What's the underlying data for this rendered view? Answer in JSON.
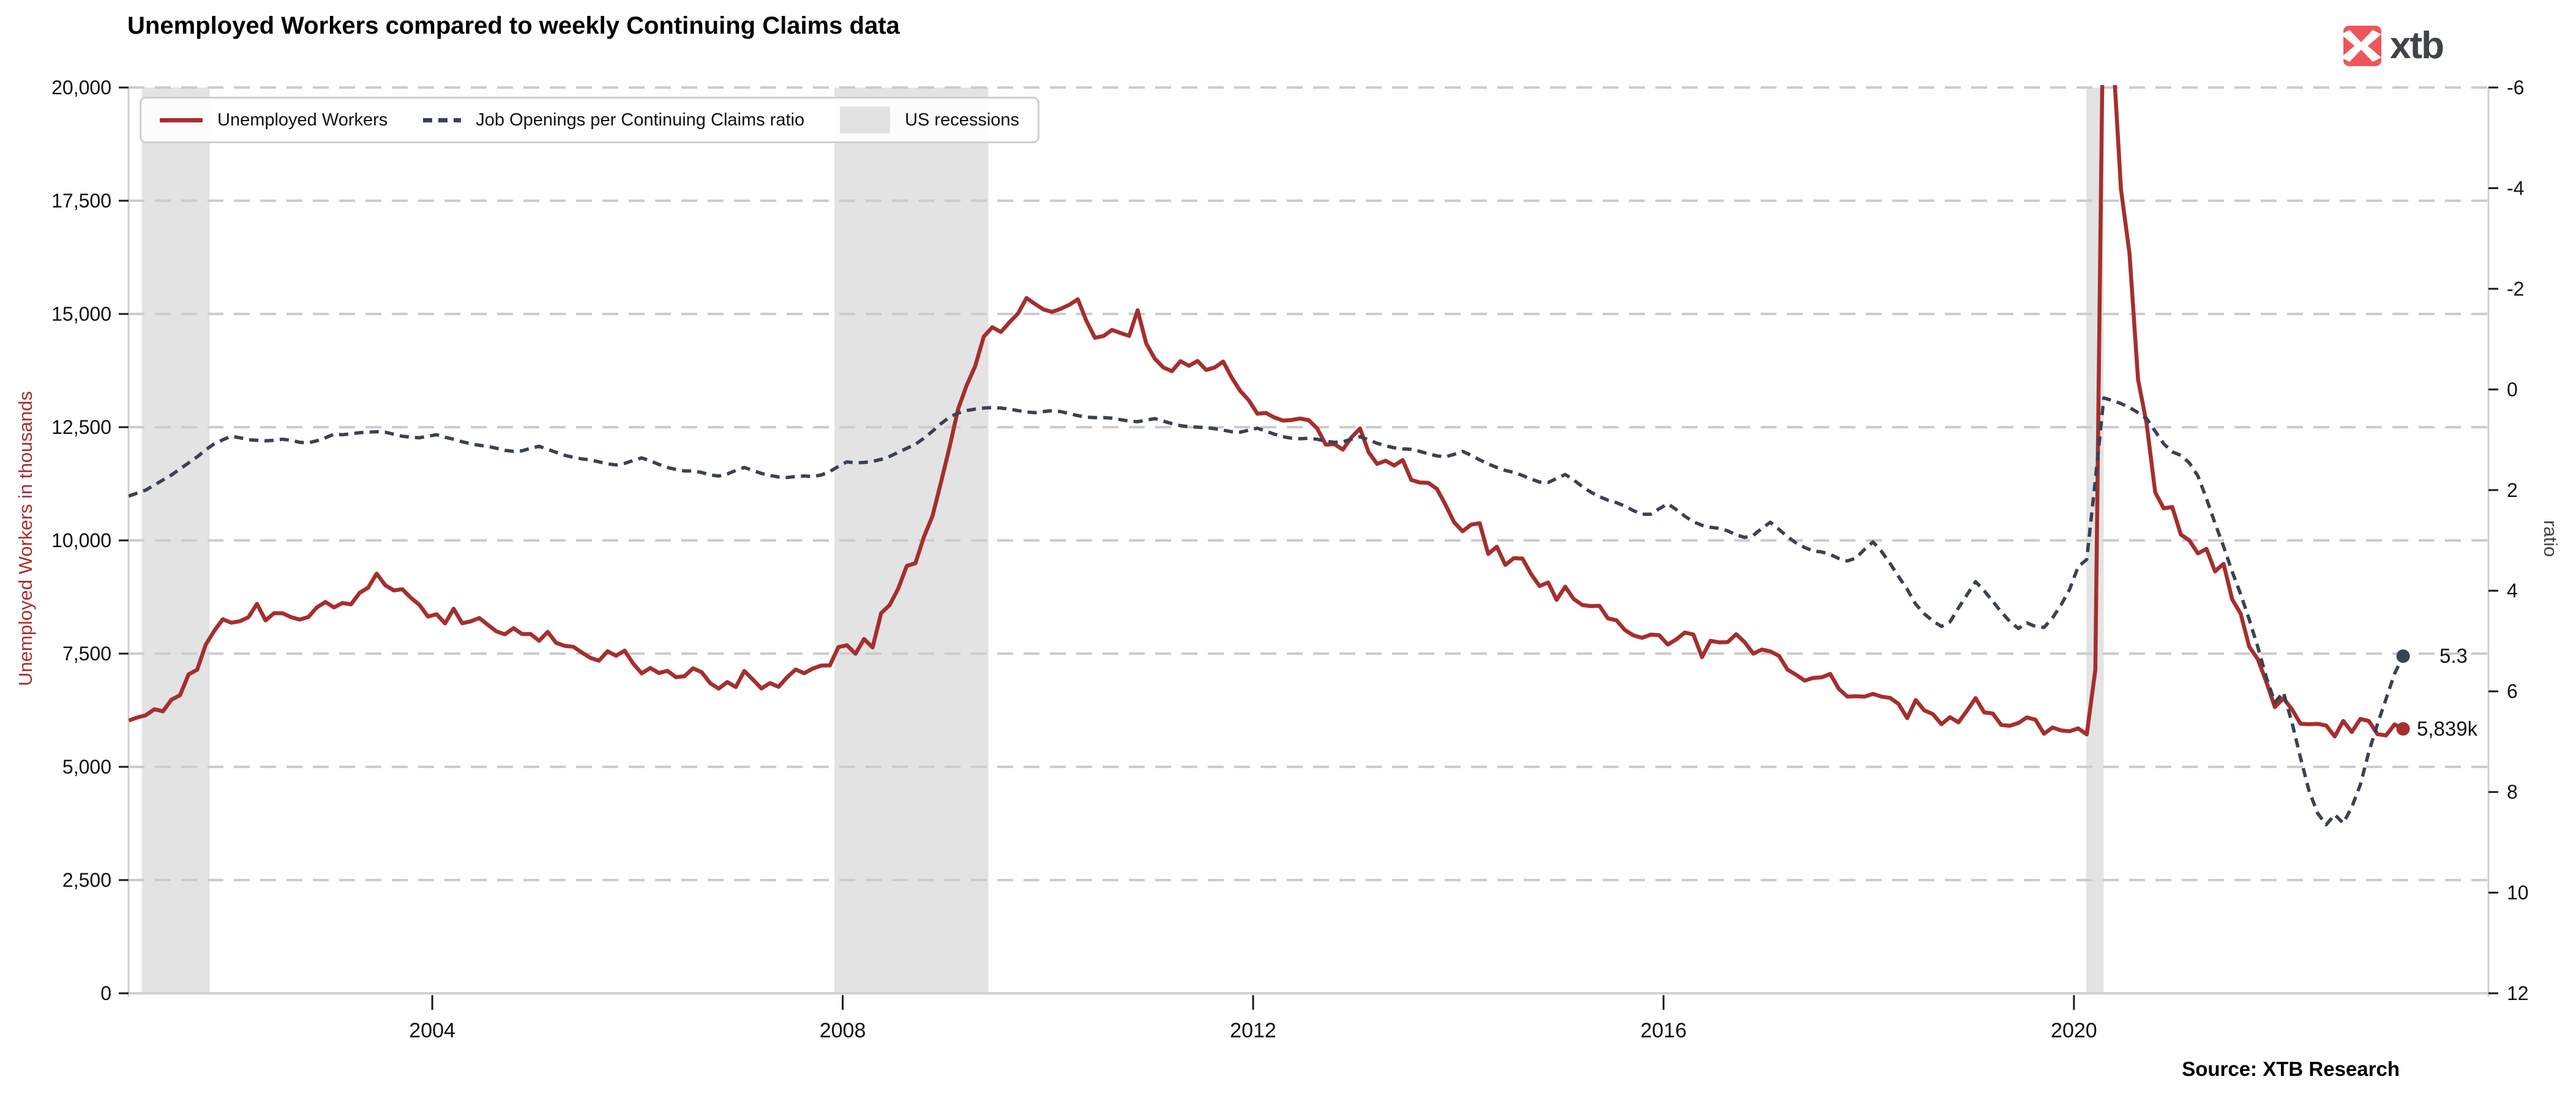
{
  "title": "Unemployed Workers compared to weekly Continuing Claims data",
  "source": "Source: XTB Research",
  "branding": {
    "logo_text": "xtb",
    "logo_square_color": "#F0555A",
    "logo_text_color": "#3E434C"
  },
  "annotations": {
    "ratio_end": "5.3",
    "unemployed_end": "5,839k"
  },
  "legend": {
    "position": "top-left",
    "items": [
      {
        "label": "Unemployed Workers",
        "type": "solid-line",
        "color": "#A42F2E"
      },
      {
        "label": "Job Openings per Continuing Claims ratio",
        "type": "dashed-line",
        "color": "#3A4154"
      },
      {
        "label": "US recessions",
        "type": "filled-box",
        "color": "#E2E2E2"
      }
    ]
  },
  "colors": {
    "unemployed_line": "#A42F2E",
    "ratio_line": "#3A4154",
    "recession_band": "#E3E3E3",
    "gridline": "#CCCCCC",
    "spine": "#D0D0D0",
    "tick": "#1A1A1A",
    "tick_label": "#111111"
  },
  "chart_data": {
    "type": "line",
    "title": "Unemployed Workers compared to weekly Continuing Claims data",
    "grid": "horizontal-dashed",
    "legend_position": "top-left",
    "x_axis": {
      "range": [
        2001.04,
        2024.04
      ],
      "ticks": [
        2004,
        2008,
        2012,
        2016,
        2020
      ]
    },
    "left_axis": {
      "label": "Unemployed Workers in thousands",
      "range": [
        0,
        20000
      ],
      "ticks": [
        0,
        2500,
        5000,
        7500,
        10000,
        12500,
        15000,
        17500,
        20000
      ]
    },
    "right_axis": {
      "label": "ratio",
      "range": [
        -6,
        12
      ],
      "inverted": true,
      "ticks": [
        -6,
        -4,
        -2,
        0,
        2,
        4,
        6,
        8,
        10,
        12
      ]
    },
    "recessions": [
      [
        2001.17,
        2001.83
      ],
      [
        2007.92,
        2009.42
      ],
      [
        2020.12,
        2020.29
      ]
    ],
    "end_labels": {
      "unemployed": 5839,
      "ratio": 5.3
    },
    "series": [
      {
        "name": "Unemployed Workers",
        "axis": "left",
        "style": "solid",
        "color": "#A42F2E",
        "start_year": 2001,
        "freq": "monthly",
        "values": [
          6023,
          6089,
          6141,
          6271,
          6226,
          6484,
          6583,
          7042,
          7142,
          7694,
          8003,
          8258,
          8182,
          8215,
          8304,
          8599,
          8234,
          8393,
          8390,
          8304,
          8251,
          8307,
          8520,
          8640,
          8520,
          8618,
          8588,
          8842,
          8957,
          9266,
          9011,
          8896,
          8921,
          8732,
          8576,
          8317,
          8370,
          8167,
          8491,
          8170,
          8212,
          8286,
          8136,
          7990,
          7927,
          8061,
          7932,
          7934,
          7784,
          7980,
          7737,
          7672,
          7651,
          7524,
          7406,
          7345,
          7553,
          7453,
          7566,
          7279,
          7064,
          7184,
          7072,
          7120,
          6980,
          7001,
          7175,
          7091,
          6847,
          6727,
          6872,
          6762,
          7116,
          6927,
          6731,
          6850,
          6766,
          6979,
          7149,
          7067,
          7170,
          7237,
          7240,
          7645,
          7685,
          7497,
          7822,
          7637,
          8395,
          8575,
          8937,
          9438,
          9494,
          10074,
          10538,
          11286,
          12058,
          12898,
          13426,
          13853,
          14499,
          14707,
          14601,
          14814,
          15009,
          15352,
          15219,
          15098,
          15046,
          15113,
          15202,
          15325,
          14849,
          14474,
          14512,
          14648,
          14579,
          14516,
          15081,
          14348,
          14013,
          13820,
          13737,
          13957,
          13855,
          13962,
          13763,
          13818,
          13948,
          13594,
          13302,
          13093,
          12797,
          12813,
          12713,
          12646,
          12660,
          12692,
          12656,
          12471,
          12115,
          12124,
          12005,
          12273,
          12471,
          11950,
          11689,
          11760,
          11654,
          11774,
          11335,
          11279,
          11270,
          11136,
          10787,
          10404,
          10202,
          10349,
          10380,
          9702,
          9859,
          9460,
          9608,
          9599,
          9262,
          8990,
          9071,
          8688,
          8979,
          8705,
          8575,
          8549,
          8555,
          8280,
          8235,
          8017,
          7902,
          7848,
          7920,
          7907,
          7700,
          7815,
          7966,
          7920,
          7423,
          7782,
          7749,
          7754,
          7928,
          7751,
          7499,
          7590,
          7549,
          7451,
          7146,
          7034,
          6904,
          6964,
          6977,
          7052,
          6722,
          6552,
          6560,
          6550,
          6611,
          6550,
          6523,
          6388,
          6076,
          6475,
          6247,
          6165,
          5942,
          6096,
          5982,
          6243,
          6518,
          6203,
          6178,
          5924,
          5907,
          5968,
          6092,
          6040,
          5731,
          5869,
          5804,
          5787,
          5850,
          5717,
          7140,
          23078,
          20985,
          17750,
          16338,
          13550,
          12580,
          11061,
          10710,
          10736,
          10130,
          9998,
          9714,
          9812,
          9316,
          9484,
          8702,
          8382,
          7653,
          7378,
          6877,
          6319,
          6513,
          6270,
          5952,
          5941,
          5950,
          5912,
          5670,
          6014,
          5769,
          6059,
          6011,
          5722,
          5694,
          5936,
          5839
        ]
      },
      {
        "name": "Job Openings per Continuing Claims ratio",
        "axis": "right",
        "style": "dashed",
        "color": "#3A4154",
        "start_year": 2001,
        "freq": "monthly",
        "values": [
          2.12,
          2.06,
          2.0,
          1.9,
          1.8,
          1.7,
          1.58,
          1.46,
          1.34,
          1.2,
          1.08,
          1.0,
          0.93,
          0.96,
          1.0,
          1.01,
          1.02,
          1.01,
          0.99,
          1.01,
          1.05,
          1.06,
          1.02,
          0.96,
          0.89,
          0.9,
          0.88,
          0.86,
          0.85,
          0.84,
          0.85,
          0.89,
          0.93,
          0.95,
          0.96,
          0.93,
          0.9,
          0.95,
          0.99,
          1.04,
          1.08,
          1.11,
          1.13,
          1.17,
          1.21,
          1.23,
          1.22,
          1.17,
          1.13,
          1.19,
          1.25,
          1.31,
          1.35,
          1.38,
          1.4,
          1.44,
          1.48,
          1.5,
          1.47,
          1.41,
          1.36,
          1.42,
          1.49,
          1.55,
          1.59,
          1.62,
          1.62,
          1.65,
          1.7,
          1.72,
          1.68,
          1.61,
          1.55,
          1.61,
          1.67,
          1.71,
          1.74,
          1.75,
          1.73,
          1.72,
          1.73,
          1.7,
          1.63,
          1.53,
          1.44,
          1.46,
          1.45,
          1.43,
          1.39,
          1.33,
          1.25,
          1.17,
          1.09,
          0.97,
          0.83,
          0.68,
          0.55,
          0.47,
          0.42,
          0.39,
          0.37,
          0.36,
          0.37,
          0.39,
          0.42,
          0.45,
          0.46,
          0.44,
          0.42,
          0.44,
          0.48,
          0.52,
          0.55,
          0.56,
          0.56,
          0.57,
          0.6,
          0.63,
          0.64,
          0.61,
          0.58,
          0.63,
          0.68,
          0.72,
          0.74,
          0.75,
          0.76,
          0.78,
          0.81,
          0.84,
          0.85,
          0.81,
          0.77,
          0.83,
          0.89,
          0.94,
          0.97,
          0.98,
          0.97,
          0.99,
          1.03,
          1.05,
          1.04,
          0.99,
          0.94,
          1.0,
          1.07,
          1.12,
          1.16,
          1.18,
          1.19,
          1.23,
          1.28,
          1.32,
          1.34,
          1.29,
          1.23,
          1.31,
          1.4,
          1.48,
          1.55,
          1.61,
          1.65,
          1.71,
          1.78,
          1.84,
          1.85,
          1.77,
          1.69,
          1.8,
          1.93,
          2.04,
          2.13,
          2.2,
          2.25,
          2.32,
          2.41,
          2.48,
          2.48,
          2.37,
          2.27,
          2.39,
          2.52,
          2.63,
          2.7,
          2.74,
          2.76,
          2.81,
          2.89,
          2.94,
          2.9,
          2.76,
          2.64,
          2.78,
          2.93,
          3.05,
          3.14,
          3.21,
          3.23,
          3.28,
          3.36,
          3.41,
          3.35,
          3.18,
          3.03,
          3.22,
          3.46,
          3.72,
          3.97,
          4.27,
          4.46,
          4.6,
          4.71,
          4.62,
          4.34,
          4.08,
          3.82,
          4.0,
          4.21,
          4.42,
          4.61,
          4.75,
          4.64,
          4.71,
          4.73,
          4.54,
          4.28,
          3.97,
          3.52,
          3.38,
          1.8,
          0.17,
          0.22,
          0.28,
          0.36,
          0.46,
          0.58,
          0.83,
          1.08,
          1.24,
          1.31,
          1.46,
          1.72,
          2.17,
          2.66,
          3.12,
          3.62,
          4.07,
          4.57,
          5.12,
          5.72,
          6.22,
          6.02,
          6.62,
          7.32,
          7.98,
          8.42,
          8.65,
          8.45,
          8.62,
          8.3,
          7.85,
          7.2,
          6.65,
          6.15,
          5.65,
          5.3
        ]
      }
    ]
  }
}
